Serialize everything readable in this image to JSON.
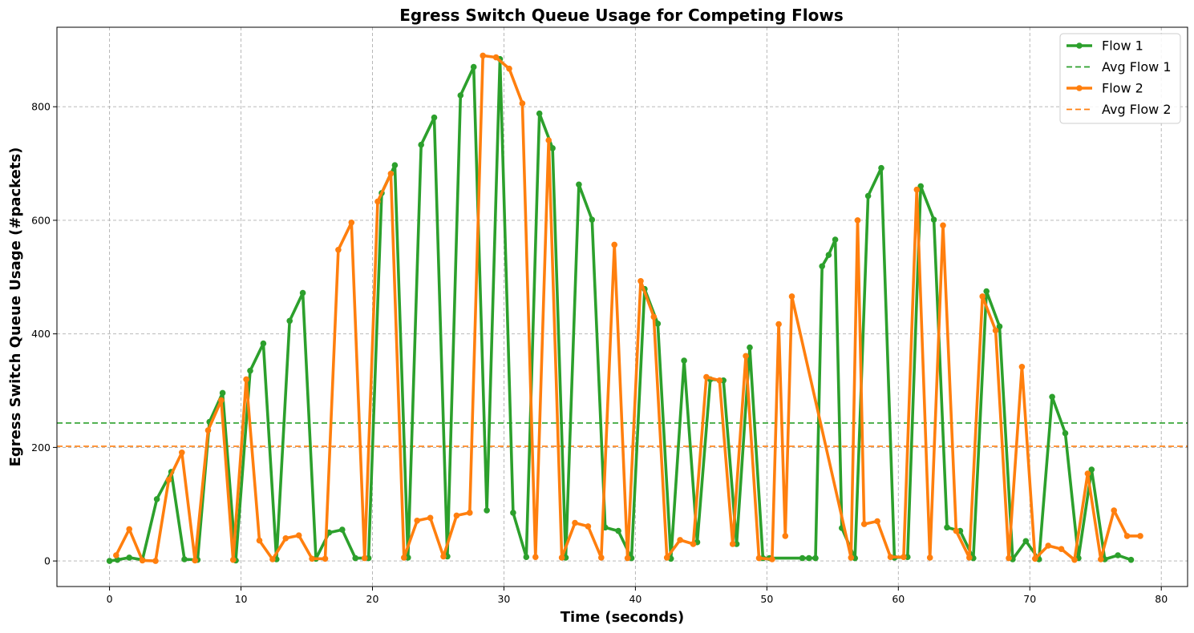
{
  "chart_data": {
    "type": "line",
    "title": "Egress Switch Queue Usage for Competing Flows",
    "xlabel": "Time (seconds)",
    "ylabel": "Egress Switch Queue Usage (#packets)",
    "xlim": [
      -4,
      82
    ],
    "ylim": [
      -45,
      940
    ],
    "xticks": [
      0,
      10,
      20,
      30,
      40,
      50,
      60,
      70,
      80
    ],
    "yticks": [
      0,
      200,
      400,
      600,
      800
    ],
    "grid": true,
    "legend_position": "top-right",
    "legend": [
      "Flow 1",
      "Avg Flow 1",
      "Flow 2",
      "Avg Flow 2"
    ],
    "series": [
      {
        "name": "Flow 1",
        "color": "#2ca02c",
        "style": "solid-markers",
        "x": [
          0.0,
          0.6,
          1.5,
          2.5,
          3.6,
          4.7,
          5.7,
          6.7,
          7.6,
          8.6,
          9.6,
          10.7,
          11.7,
          12.7,
          13.7,
          14.7,
          15.7,
          16.7,
          17.7,
          18.7,
          19.7,
          20.7,
          21.7,
          22.7,
          23.7,
          24.7,
          25.7,
          26.7,
          27.7,
          28.7,
          29.7,
          30.7,
          31.7,
          32.7,
          33.7,
          34.7,
          35.7,
          36.7,
          37.7,
          38.7,
          39.7,
          40.7,
          41.7,
          42.7,
          43.7,
          44.7,
          45.7,
          46.7,
          47.7,
          48.7,
          49.7,
          50.2,
          52.7,
          53.2,
          53.7,
          54.2,
          54.7,
          55.2,
          55.7,
          56.7,
          57.7,
          58.7,
          59.7,
          60.7,
          61.7,
          62.7,
          63.7,
          64.7,
          65.7,
          66.7,
          67.7,
          68.7,
          69.7,
          70.7,
          71.7,
          72.7,
          73.7,
          74.7,
          75.7,
          76.7,
          77.7
        ],
        "values": [
          0,
          2,
          6,
          2,
          109,
          157,
          3,
          2,
          245,
          296,
          1,
          335,
          383,
          3,
          423,
          472,
          4,
          50,
          55,
          5,
          5,
          648,
          697,
          6,
          733,
          781,
          8,
          820,
          870,
          89,
          884,
          85,
          7,
          788,
          727,
          6,
          663,
          601,
          59,
          53,
          5,
          479,
          418,
          4,
          353,
          33,
          320,
          318,
          30,
          376,
          5,
          5,
          5,
          5,
          5,
          519,
          539,
          566,
          58,
          5,
          643,
          692,
          6,
          7,
          660,
          601,
          59,
          53,
          5,
          475,
          413,
          3,
          35,
          3,
          289,
          225,
          5,
          161,
          3,
          10,
          2
        ]
      },
      {
        "name": "Avg Flow 1",
        "color": "#2ca02c",
        "style": "dashed",
        "value": 243
      },
      {
        "name": "Flow 2",
        "color": "#ff7f0e",
        "style": "solid-markers",
        "x": [
          0.5,
          1.5,
          2.5,
          3.5,
          4.5,
          5.5,
          6.5,
          7.5,
          8.5,
          9.4,
          10.4,
          11.4,
          12.4,
          13.4,
          14.4,
          15.4,
          16.4,
          17.4,
          18.4,
          19.4,
          20.4,
          21.4,
          22.4,
          23.4,
          24.4,
          25.4,
          26.4,
          27.4,
          28.4,
          29.4,
          30.4,
          31.4,
          32.4,
          33.4,
          34.4,
          35.4,
          36.4,
          37.4,
          38.4,
          39.4,
          40.4,
          41.4,
          42.4,
          43.4,
          44.4,
          45.4,
          46.4,
          47.4,
          48.4,
          49.4,
          50.4,
          50.9,
          51.4,
          51.9,
          56.4,
          56.9,
          57.4,
          58.4,
          59.4,
          60.4,
          61.4,
          62.4,
          63.4,
          64.4,
          65.4,
          66.4,
          67.4,
          68.4,
          69.4,
          70.4,
          71.4,
          72.4,
          73.4,
          74.4,
          75.4,
          76.4,
          77.4,
          78.4
        ],
        "values": [
          10,
          56,
          1,
          0,
          143,
          191,
          1,
          230,
          283,
          2,
          320,
          36,
          3,
          40,
          45,
          4,
          4,
          548,
          596,
          5,
          633,
          682,
          6,
          71,
          76,
          8,
          80,
          85,
          890,
          887,
          867,
          806,
          7,
          741,
          6,
          67,
          61,
          6,
          557,
          5,
          493,
          430,
          6,
          37,
          30,
          324,
          318,
          30,
          361,
          5,
          3,
          417,
          44,
          466,
          6,
          600,
          65,
          70,
          7,
          7,
          654,
          6,
          591,
          53,
          6,
          466,
          406,
          5,
          342,
          4,
          27,
          21,
          2,
          154,
          3,
          89,
          44,
          44
        ]
      },
      {
        "name": "Avg Flow 2",
        "color": "#ff7f0e",
        "style": "dashed",
        "value": 202
      }
    ]
  }
}
